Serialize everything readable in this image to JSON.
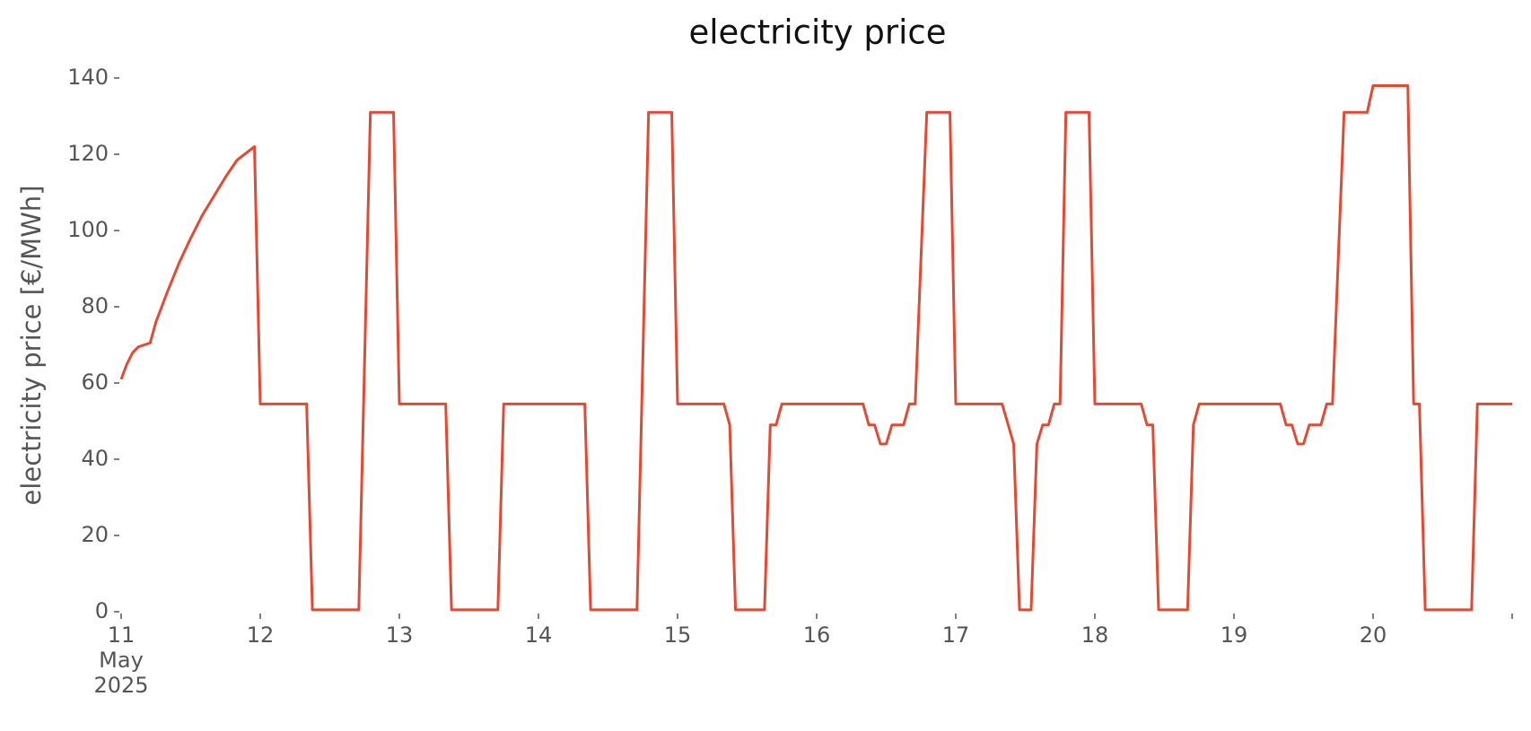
{
  "chart_data": {
    "type": "line",
    "title": "electricity price",
    "y_label": "electricity price [€/MWh]",
    "ylim": [
      0,
      140
    ],
    "yticks": [
      0,
      20,
      40,
      60,
      80,
      100,
      120,
      140
    ],
    "xlim": [
      "2025-05-11T00:00",
      "2025-05-21T00:00"
    ],
    "xticks": [
      {
        "value": "2025-05-11T00:00",
        "label": "11\nMay\n2025"
      },
      {
        "value": "2025-05-12T00:00",
        "label": "12"
      },
      {
        "value": "2025-05-13T00:00",
        "label": "13"
      },
      {
        "value": "2025-05-14T00:00",
        "label": "14"
      },
      {
        "value": "2025-05-15T00:00",
        "label": "15"
      },
      {
        "value": "2025-05-16T00:00",
        "label": "16"
      },
      {
        "value": "2025-05-17T00:00",
        "label": "17"
      },
      {
        "value": "2025-05-18T00:00",
        "label": "18"
      },
      {
        "value": "2025-05-19T00:00",
        "label": "19"
      },
      {
        "value": "2025-05-20T00:00",
        "label": "20"
      }
    ],
    "grid": false,
    "x": [
      "2025-05-11T00:00",
      "2025-05-11T01:00",
      "2025-05-11T02:00",
      "2025-05-11T03:00",
      "2025-05-11T05:00",
      "2025-05-11T06:00",
      "2025-05-11T08:00",
      "2025-05-11T10:00",
      "2025-05-11T12:00",
      "2025-05-11T14:00",
      "2025-05-11T16:00",
      "2025-05-11T18:00",
      "2025-05-11T20:00",
      "2025-05-11T23:00",
      "2025-05-12T00:00",
      "2025-05-12T08:00",
      "2025-05-12T09:00",
      "2025-05-12T17:00",
      "2025-05-12T19:00",
      "2025-05-12T23:00",
      "2025-05-13T00:00",
      "2025-05-13T08:00",
      "2025-05-13T09:00",
      "2025-05-13T17:00",
      "2025-05-13T18:00",
      "2025-05-14T08:00",
      "2025-05-14T09:00",
      "2025-05-14T17:00",
      "2025-05-14T19:00",
      "2025-05-14T23:00",
      "2025-05-15T00:00",
      "2025-05-15T08:00",
      "2025-05-15T09:00",
      "2025-05-15T10:00",
      "2025-05-15T15:00",
      "2025-05-15T16:00",
      "2025-05-15T17:00",
      "2025-05-15T18:00",
      "2025-05-16T08:00",
      "2025-05-16T09:00",
      "2025-05-16T10:00",
      "2025-05-16T11:00",
      "2025-05-16T12:00",
      "2025-05-16T13:00",
      "2025-05-16T15:00",
      "2025-05-16T16:00",
      "2025-05-16T17:00",
      "2025-05-16T19:00",
      "2025-05-16T23:00",
      "2025-05-17T00:00",
      "2025-05-17T08:00",
      "2025-05-17T10:00",
      "2025-05-17T11:00",
      "2025-05-17T13:00",
      "2025-05-17T14:00",
      "2025-05-17T15:00",
      "2025-05-17T16:00",
      "2025-05-17T17:00",
      "2025-05-17T18:00",
      "2025-05-17T19:00",
      "2025-05-17T23:00",
      "2025-05-18T00:00",
      "2025-05-18T08:00",
      "2025-05-18T09:00",
      "2025-05-18T10:00",
      "2025-05-18T11:00",
      "2025-05-18T16:00",
      "2025-05-18T17:00",
      "2025-05-18T18:00",
      "2025-05-19T08:00",
      "2025-05-19T09:00",
      "2025-05-19T10:00",
      "2025-05-19T11:00",
      "2025-05-19T12:00",
      "2025-05-19T13:00",
      "2025-05-19T15:00",
      "2025-05-19T16:00",
      "2025-05-19T17:00",
      "2025-05-19T19:00",
      "2025-05-19T23:00",
      "2025-05-20T00:00",
      "2025-05-20T06:00",
      "2025-05-20T07:00",
      "2025-05-20T08:00",
      "2025-05-20T09:00",
      "2025-05-20T17:00",
      "2025-05-20T18:00",
      "2025-05-21T00:00"
    ],
    "series": [
      {
        "name": "electricity price",
        "color": "#e24a33",
        "values": [
          61,
          65,
          68,
          69.5,
          70.5,
          76,
          84,
          91.5,
          98,
          104,
          109,
          114,
          118.5,
          122,
          54.5,
          54.5,
          0.5,
          0.5,
          131,
          131,
          54.5,
          54.5,
          0.5,
          0.5,
          54.5,
          54.5,
          0.5,
          0.5,
          131,
          131,
          54.5,
          54.5,
          49,
          0.5,
          0.5,
          49,
          49,
          54.5,
          54.5,
          49,
          49,
          44,
          44,
          49,
          49,
          54.5,
          54.5,
          131,
          131,
          54.5,
          54.5,
          44,
          0.5,
          0.5,
          44,
          49,
          49,
          54.5,
          54.5,
          131,
          131,
          54.5,
          54.5,
          49,
          49,
          0.5,
          0.5,
          49,
          54.5,
          54.5,
          49,
          49,
          44,
          44,
          49,
          49,
          54.5,
          54.5,
          131,
          131,
          138,
          138,
          54.5,
          54.5,
          0.5,
          0.5,
          54.5,
          54.5
        ]
      }
    ]
  }
}
